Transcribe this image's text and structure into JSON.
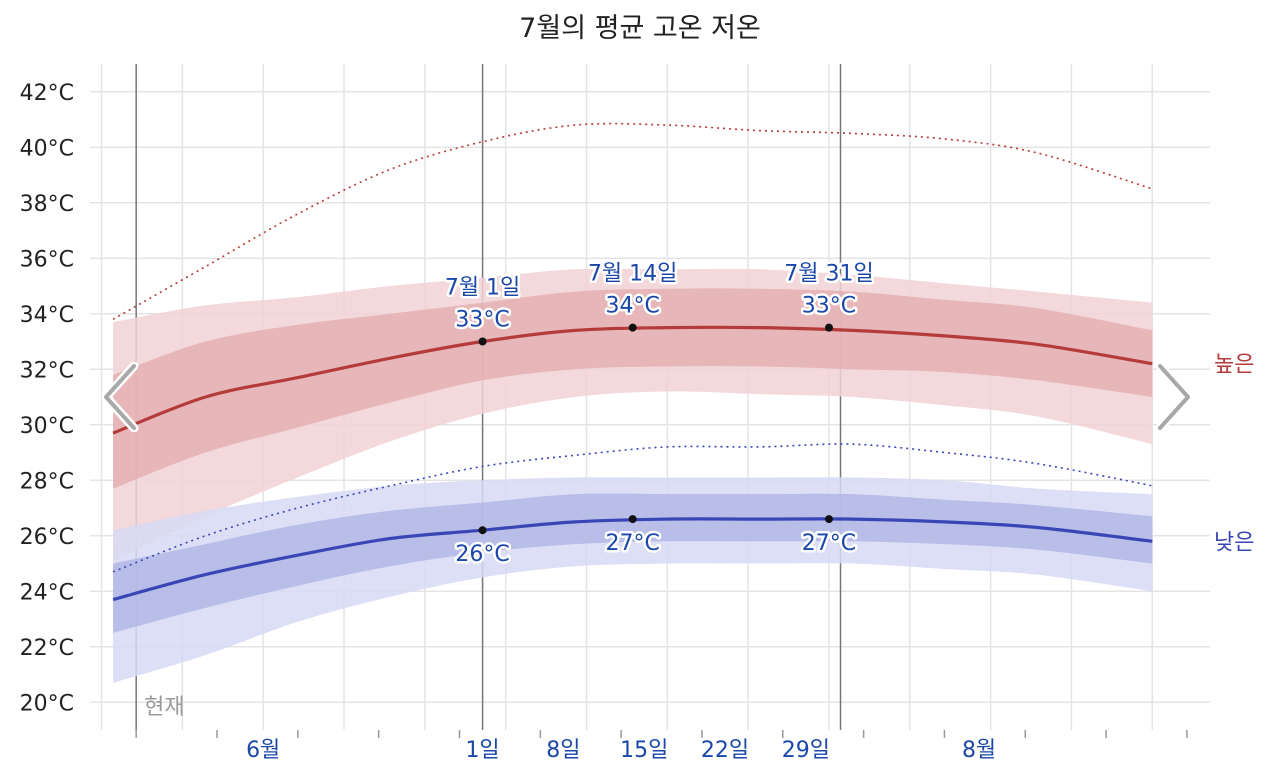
{
  "title": "7월의 평균 고온 저온",
  "colors": {
    "high": "#b53a3a",
    "high_band_inner": "#e2a9ad",
    "high_band_outer": "#f1d2d5",
    "low": "#3a46b5",
    "low_band_inner": "#aeb3e4",
    "low_band_outer": "#d6d9f3",
    "label": "#1a47a8",
    "grid": "#e4e4e4"
  },
  "navigation": {
    "prev_icon": "chevron-left-icon",
    "next_icon": "chevron-right-icon"
  },
  "chart_data": {
    "type": "line",
    "title": "7월의 평균 고온 저온",
    "x_unit": "day",
    "x_range": [
      "5월 28일",
      "8월 31일"
    ],
    "y_range": [
      19,
      43
    ],
    "y_ticks": [
      "42°C",
      "40°C",
      "38°C",
      "36°C",
      "34°C",
      "32°C",
      "30°C",
      "28°C",
      "26°C",
      "24°C",
      "22°C",
      "20°C"
    ],
    "y_tick_values": [
      42,
      40,
      38,
      36,
      34,
      32,
      30,
      28,
      26,
      24,
      22,
      20
    ],
    "x_ticks": [
      {
        "label": "6월",
        "day": 15
      },
      {
        "label": "1일",
        "day": 34
      },
      {
        "label": "8일",
        "day": 41
      },
      {
        "label": "15일",
        "day": 48
      },
      {
        "label": "22일",
        "day": 55
      },
      {
        "label": "29일",
        "day": 62
      },
      {
        "label": "8월",
        "day": 77
      }
    ],
    "current_day_marker": {
      "label": "현재",
      "day": 4
    },
    "series": [
      {
        "name": "높은",
        "x": [
          2,
          10,
          18,
          26,
          34,
          42,
          50,
          58,
          66,
          74,
          82,
          92
        ],
        "values": [
          29.7,
          31.0,
          31.7,
          32.4,
          33.0,
          33.4,
          33.5,
          33.5,
          33.4,
          33.2,
          32.9,
          32.2
        ],
        "band_inner": [
          [
            27.7,
            31.8
          ],
          [
            29.0,
            33.0
          ],
          [
            29.9,
            33.6
          ],
          [
            30.8,
            34.0
          ],
          [
            31.6,
            34.4
          ],
          [
            32.0,
            34.8
          ],
          [
            32.1,
            34.9
          ],
          [
            32.1,
            34.9
          ],
          [
            32.0,
            34.8
          ],
          [
            31.9,
            34.5
          ],
          [
            31.6,
            34.2
          ],
          [
            31.0,
            33.4
          ]
        ],
        "band_outer": [
          [
            25.1,
            33.7
          ],
          [
            26.7,
            34.3
          ],
          [
            28.1,
            34.6
          ],
          [
            29.4,
            35.0
          ],
          [
            30.4,
            35.3
          ],
          [
            31.0,
            35.6
          ],
          [
            31.2,
            35.6
          ],
          [
            31.1,
            35.6
          ],
          [
            31.0,
            35.4
          ],
          [
            30.7,
            35.1
          ],
          [
            30.3,
            34.8
          ],
          [
            29.3,
            34.4
          ]
        ],
        "max_line": [
          33.8,
          35.7,
          37.6,
          39.2,
          40.2,
          40.8,
          40.8,
          40.6,
          40.5,
          40.3,
          39.8,
          38.5
        ],
        "annotations": [
          {
            "x": 34,
            "y": 33.0,
            "date": "7월 1일",
            "value": "33°C"
          },
          {
            "x": 47,
            "y": 33.5,
            "date": "7월 14일",
            "value": "34°C"
          },
          {
            "x": 64,
            "y": 33.5,
            "date": "7월 31일",
            "value": "33°C"
          }
        ]
      },
      {
        "name": "낮은",
        "x": [
          2,
          10,
          18,
          26,
          34,
          42,
          50,
          58,
          66,
          74,
          82,
          92
        ],
        "values": [
          23.7,
          24.6,
          25.3,
          25.9,
          26.2,
          26.5,
          26.6,
          26.6,
          26.6,
          26.5,
          26.3,
          25.8
        ],
        "band_inner": [
          [
            22.5,
            25.0
          ],
          [
            23.4,
            25.7
          ],
          [
            24.2,
            26.4
          ],
          [
            24.9,
            26.9
          ],
          [
            25.4,
            27.2
          ],
          [
            25.7,
            27.5
          ],
          [
            25.8,
            27.5
          ],
          [
            25.8,
            27.5
          ],
          [
            25.8,
            27.5
          ],
          [
            25.7,
            27.3
          ],
          [
            25.5,
            27.1
          ],
          [
            25.0,
            26.7
          ]
        ],
        "band_outer": [
          [
            20.7,
            26.2
          ],
          [
            21.7,
            26.9
          ],
          [
            22.9,
            27.4
          ],
          [
            23.8,
            27.8
          ],
          [
            24.5,
            28.0
          ],
          [
            24.9,
            28.1
          ],
          [
            25.0,
            28.1
          ],
          [
            25.0,
            28.1
          ],
          [
            25.0,
            28.1
          ],
          [
            24.8,
            28.0
          ],
          [
            24.6,
            27.7
          ],
          [
            24.0,
            27.5
          ]
        ],
        "max_line": [
          24.7,
          26.0,
          27.0,
          27.8,
          28.5,
          28.9,
          29.2,
          29.2,
          29.3,
          29.0,
          28.6,
          27.8
        ],
        "annotations": [
          {
            "x": 34,
            "y": 26.2,
            "value": "26°C"
          },
          {
            "x": 47,
            "y": 26.6,
            "value": "27°C"
          },
          {
            "x": 64,
            "y": 26.6,
            "value": "27°C"
          }
        ]
      }
    ]
  }
}
